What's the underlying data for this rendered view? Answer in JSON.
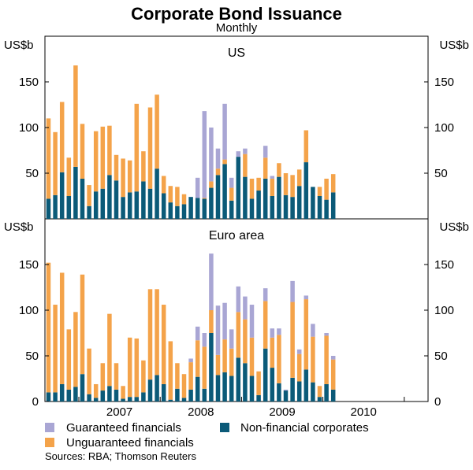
{
  "title": "Corporate Bond Issuance",
  "subtitle": "Monthly",
  "unit_label": "US$b",
  "source": "Sources: RBA; Thomson Reuters",
  "colors": {
    "guaranteed": "#a9a6d4",
    "unguaranteed": "#f4a34a",
    "nonfinancial": "#0b5a78",
    "axis": "#000000",
    "grid": "#9a9a9a"
  },
  "legend": [
    {
      "key": "guaranteed",
      "label": "Guaranteed financials"
    },
    {
      "key": "nonfinancial",
      "label": "Non-financial corporates"
    },
    {
      "key": "unguaranteed",
      "label": "Unguaranteed financials"
    }
  ],
  "chart_data": {
    "type": "bar",
    "stacked": true,
    "x_start": "2006-08",
    "x_end": "2010-02",
    "x_tick_labels": [
      "2007",
      "2008",
      "2009",
      "2010"
    ],
    "series_names": [
      "Non-financial corporates",
      "Unguaranteed financials",
      "Guaranteed financials"
    ],
    "panels": [
      {
        "name": "US",
        "ylim": [
          0,
          200
        ],
        "yticks": [
          0,
          50,
          100,
          150
        ],
        "nonfinancial": [
          22,
          26,
          51,
          25,
          57,
          44,
          14,
          30,
          33,
          48,
          42,
          24,
          29,
          30,
          41,
          33,
          55,
          28,
          18,
          14,
          16,
          24,
          23,
          22,
          34,
          48,
          60,
          20,
          68,
          46,
          22,
          31,
          44,
          25,
          46,
          26,
          24,
          36,
          62,
          35,
          25,
          21,
          29
        ],
        "unguaranteed": [
          88,
          69,
          77,
          42,
          111,
          60,
          23,
          66,
          68,
          54,
          28,
          42,
          35,
          96,
          33,
          89,
          81,
          19,
          18,
          21,
          11,
          0,
          0,
          1,
          7,
          7,
          5,
          14,
          0,
          25,
          22,
          14,
          23,
          19,
          15,
          24,
          24,
          18,
          35,
          0,
          10,
          23,
          20
        ],
        "guaranteed": [
          0,
          0,
          0,
          0,
          0,
          0,
          0,
          0,
          0,
          0,
          0,
          0,
          0,
          0,
          0,
          0,
          0,
          0,
          0,
          0,
          0,
          0,
          22,
          95,
          59,
          22,
          61,
          11,
          6,
          6,
          0,
          0,
          13,
          3,
          0,
          0,
          0,
          0,
          0,
          0,
          0,
          0,
          0
        ]
      },
      {
        "name": "Euro area",
        "ylim": [
          0,
          200
        ],
        "yticks": [
          0,
          50,
          100,
          150
        ],
        "nonfinancial": [
          10,
          10,
          19,
          13,
          16,
          30,
          8,
          4,
          12,
          17,
          13,
          3,
          5,
          5,
          10,
          24,
          29,
          19,
          2,
          14,
          4,
          13,
          27,
          14,
          75,
          29,
          32,
          28,
          48,
          42,
          28,
          7,
          58,
          37,
          20,
          12,
          26,
          22,
          35,
          21,
          5,
          19,
          13
        ],
        "unguaranteed": [
          142,
          96,
          122,
          66,
          82,
          109,
          50,
          15,
          30,
          79,
          29,
          14,
          65,
          64,
          35,
          99,
          94,
          87,
          64,
          28,
          26,
          30,
          40,
          46,
          25,
          22,
          36,
          30,
          50,
          48,
          42,
          26,
          52,
          33,
          53,
          0,
          83,
          30,
          77,
          50,
          12,
          53,
          33
        ],
        "guaranteed": [
          0,
          0,
          0,
          0,
          0,
          0,
          0,
          0,
          0,
          0,
          0,
          0,
          0,
          0,
          0,
          0,
          0,
          0,
          0,
          0,
          0,
          4,
          15,
          15,
          62,
          54,
          40,
          21,
          28,
          25,
          36,
          0,
          14,
          10,
          7,
          1,
          23,
          5,
          4,
          14,
          0,
          3,
          4
        ]
      }
    ]
  }
}
